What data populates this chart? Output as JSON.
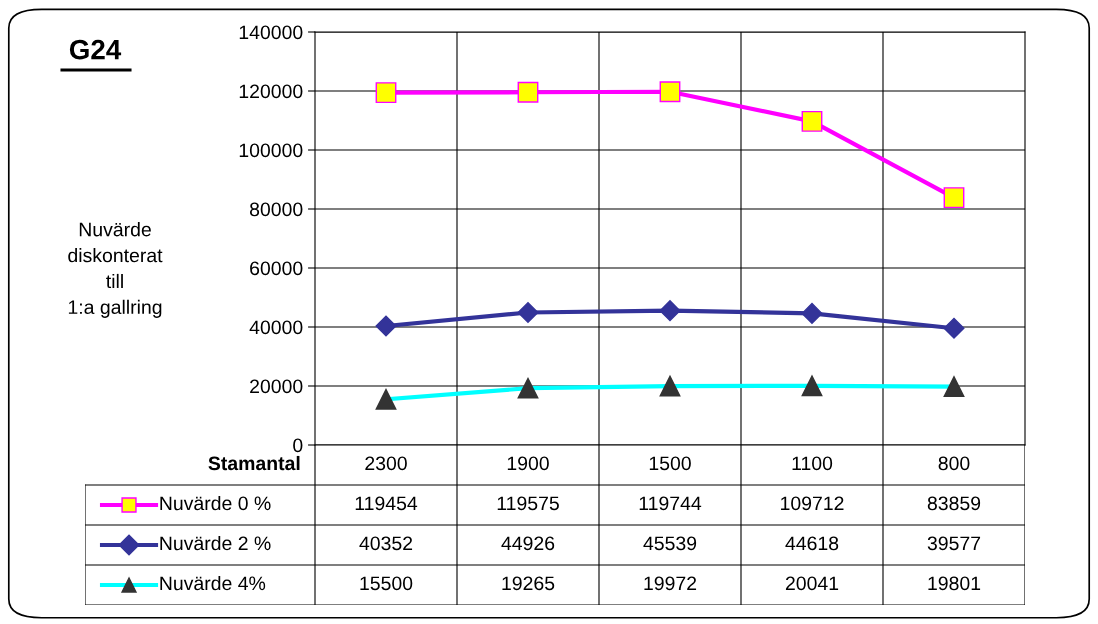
{
  "chart_data": {
    "type": "line",
    "title": "G24",
    "ylabel": "Nuvärde\ndiskonterat\ntill\n1:a gallring",
    "xlabel": "Stamantal",
    "categories": [
      "2300",
      "1900",
      "1500",
      "1100",
      "800"
    ],
    "series": [
      {
        "name": "Nuvärde 0 %",
        "color": "#ff00ff",
        "marker": "square",
        "colors": [
          "#ffff00",
          "#ffff00",
          "#ffff00",
          "#ffff00",
          "#ffff00"
        ],
        "values": [
          119454,
          119575,
          119744,
          109712,
          83859
        ]
      },
      {
        "name": "Nuvärde 2 %",
        "color": "#333399",
        "marker": "diamond",
        "colors": [
          "#333399",
          "#333399",
          "#333399",
          "#333399",
          "#333399"
        ],
        "values": [
          40352,
          44926,
          45539,
          44618,
          39577
        ]
      },
      {
        "name": "Nuvärde 4%",
        "color": "#00ffff",
        "marker": "triangle",
        "colors": [
          "#333333",
          "#333333",
          "#333333",
          "#333333",
          "#333333"
        ],
        "values": [
          15500,
          19265,
          19972,
          20041,
          19801
        ]
      }
    ],
    "ylim": [
      0,
      140000
    ],
    "yticks": [
      0,
      20000,
      40000,
      60000,
      80000,
      100000,
      120000,
      140000
    ],
    "grid": true,
    "legend": "bottom",
    "data_labels": true
  }
}
